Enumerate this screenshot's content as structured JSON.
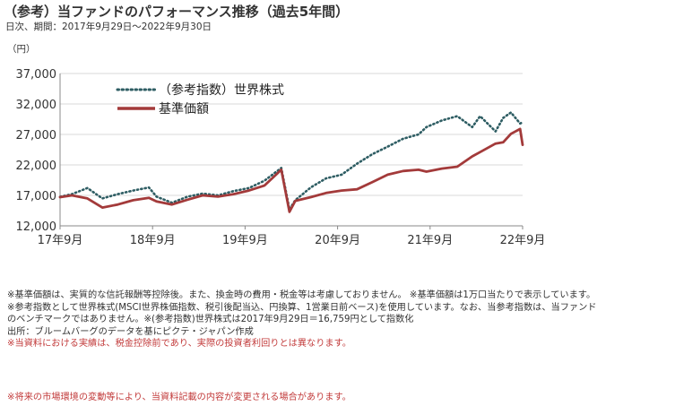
{
  "header": {
    "title": "（参考）当ファンドのパフォーマンス推移（過去5年間）",
    "subtitle": "日次、期間：2017年9月29日～2022年9月30日",
    "unit": "（円）"
  },
  "chart_data": {
    "type": "line",
    "x": [
      "2017-09-29",
      "2017-11",
      "2018-01",
      "2018-03",
      "2018-05",
      "2018-07",
      "2018-09",
      "2018-10",
      "2018-12",
      "2019-02",
      "2019-04",
      "2019-06",
      "2019-08",
      "2019-10",
      "2019-12",
      "2020-02-20",
      "2020-03-23",
      "2020-04",
      "2020-06",
      "2020-08",
      "2020-10",
      "2020-12",
      "2021-02",
      "2021-04",
      "2021-06",
      "2021-08",
      "2021-09",
      "2021-11",
      "2022-01",
      "2022-03",
      "2022-04",
      "2022-06",
      "2022-07",
      "2022-08",
      "2022-09-20",
      "2022-09-30"
    ],
    "xticks": [
      "17年9月",
      "18年9月",
      "19年9月",
      "20年9月",
      "21年9月",
      "22年9月"
    ],
    "yticks": [
      "12,000",
      "17,000",
      "22,000",
      "27,000",
      "32,000",
      "37,000"
    ],
    "ylim": [
      12000,
      37000
    ],
    "grid": true,
    "legend_position": "top-left",
    "series": [
      {
        "name": "（参考指数）世界株式",
        "color": "#2e5d63",
        "style": "dotted",
        "values": [
          16759,
          17200,
          18200,
          16500,
          17200,
          17800,
          18300,
          16800,
          15800,
          16800,
          17300,
          17000,
          17700,
          18200,
          19400,
          21500,
          14700,
          16200,
          18300,
          19800,
          20400,
          22200,
          23800,
          25000,
          26300,
          27000,
          28200,
          29300,
          30000,
          28200,
          30000,
          27500,
          29700,
          30600,
          28800,
          29000
        ]
      },
      {
        "name": "基準価額",
        "color": "#a33a3a",
        "style": "solid",
        "values": [
          16700,
          17000,
          16500,
          15000,
          15500,
          16200,
          16600,
          16000,
          15500,
          16300,
          17000,
          16800,
          17200,
          17800,
          18600,
          21200,
          14300,
          16100,
          16700,
          17400,
          17800,
          18000,
          19200,
          20400,
          21000,
          21200,
          20900,
          21400,
          21700,
          23400,
          24100,
          25500,
          25700,
          27100,
          27900,
          25300
        ]
      }
    ]
  },
  "notes": [
    "※基準価額は、実質的な信託報酬等控除後。また、換金時の費用・税金等は考慮しておりません。 ※基準価額は1万口当たりで表示しています。",
    "※参考指数として世界株式(MSCI世界株価指数、税引後配当込、円換算、1営業日前ベース)を使用しています。なお、当参考指数は、当ファンド",
    "のベンチマークではありません。※(参考指数)世界株式は2017年9月29日＝16,759円として指数化",
    "出所：ブルームバーグのデータを基にピクテ・ジャパン作成"
  ],
  "note_red": "※当資料における実績は、税金控除前であり、実際の投資者利回りとは異なります。",
  "footer": "※将来の市場環境の変動等により、当資料記載の内容が変更される場合があります。"
}
